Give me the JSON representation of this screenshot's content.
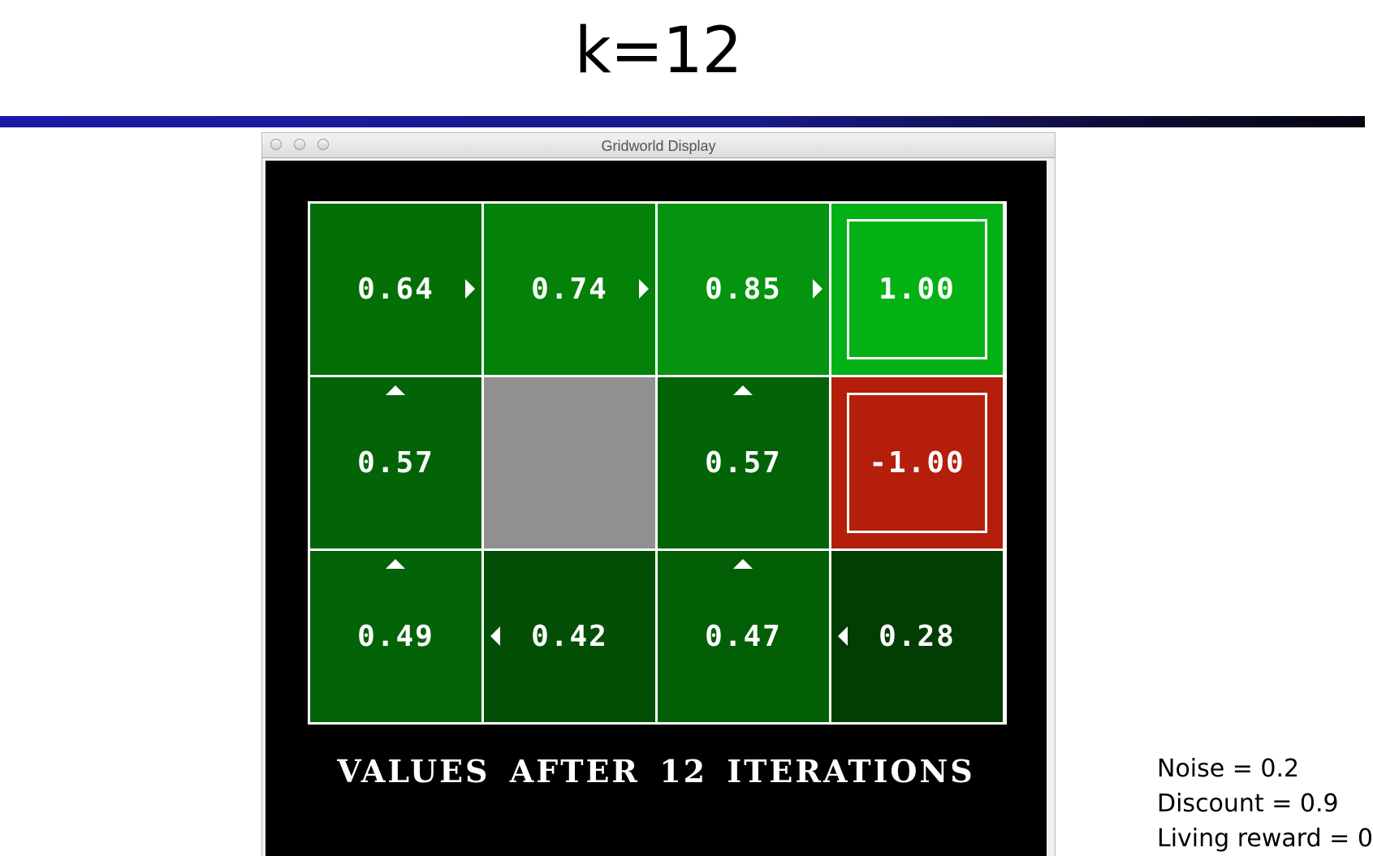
{
  "slide": {
    "title": "k=12",
    "rule_color": "#1a1aa8"
  },
  "window": {
    "title": "Gridworld Display",
    "buttons": [
      "close-button",
      "minimize-button",
      "zoom-button"
    ]
  },
  "grid": {
    "cells": [
      {
        "value": "0.64",
        "arrow": "right",
        "color": "#036f06",
        "terminal": false,
        "wall": false
      },
      {
        "value": "0.74",
        "arrow": "right",
        "color": "#048109",
        "terminal": false,
        "wall": false
      },
      {
        "value": "0.85",
        "arrow": "right",
        "color": "#049410",
        "terminal": false,
        "wall": false
      },
      {
        "value": "1.00",
        "arrow": "",
        "color": "#04b114",
        "terminal": true,
        "wall": false
      },
      {
        "value": "0.57",
        "arrow": "up",
        "color": "#036307",
        "terminal": false,
        "wall": false
      },
      {
        "value": "",
        "arrow": "",
        "color": "#909090",
        "terminal": false,
        "wall": true
      },
      {
        "value": "0.57",
        "arrow": "up",
        "color": "#036307",
        "terminal": false,
        "wall": false
      },
      {
        "value": "-1.00",
        "arrow": "",
        "color": "#b41e0b",
        "terminal": true,
        "wall": false
      },
      {
        "value": "0.49",
        "arrow": "up",
        "color": "#036307",
        "terminal": false,
        "wall": false
      },
      {
        "value": "0.42",
        "arrow": "left",
        "color": "#024f05",
        "terminal": false,
        "wall": false
      },
      {
        "value": "0.47",
        "arrow": "up",
        "color": "#035f06",
        "terminal": false,
        "wall": false
      },
      {
        "value": "0.28",
        "arrow": "left",
        "color": "#023d04",
        "terminal": false,
        "wall": false
      }
    ]
  },
  "status": {
    "label": "VALUES AFTER 12 ITERATIONS"
  },
  "params": {
    "noise": "Noise = 0.2",
    "discount": "Discount = 0.9",
    "living_reward": "Living reward = 0"
  }
}
